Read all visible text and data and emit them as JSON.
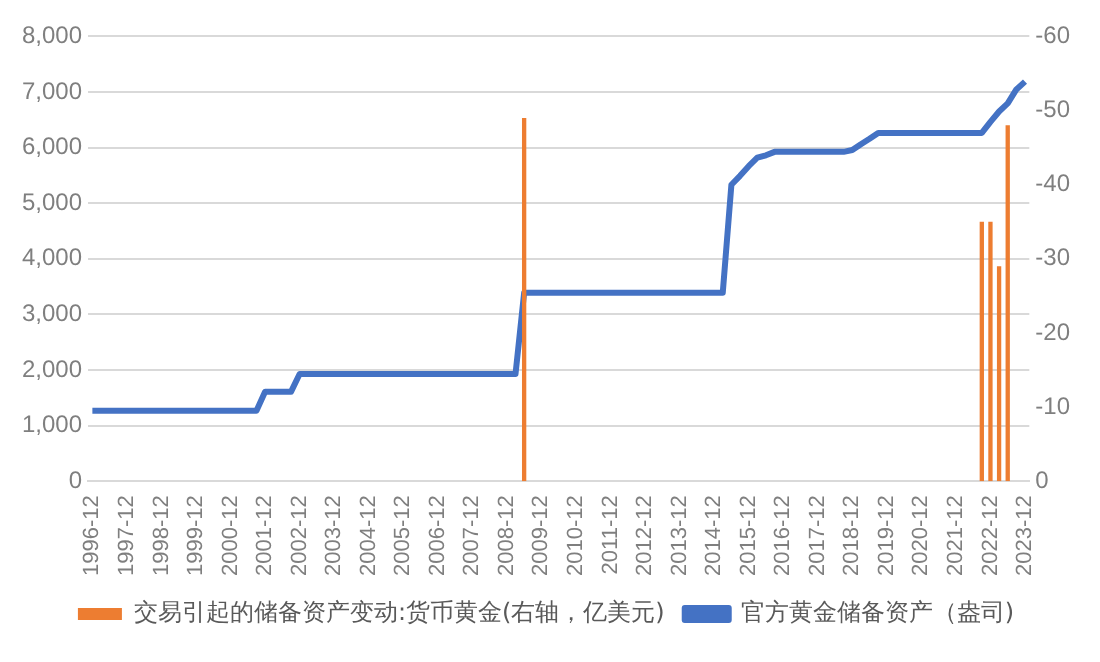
{
  "chart_data": {
    "type": "bar",
    "categories": [
      "1996-12",
      null,
      null,
      null,
      "1997-12",
      null,
      null,
      null,
      "1998-12",
      null,
      null,
      null,
      "1999-12",
      null,
      null,
      null,
      "2000-12",
      null,
      null,
      null,
      "2001-12",
      null,
      null,
      null,
      "2002-12",
      null,
      null,
      null,
      "2003-12",
      null,
      null,
      null,
      "2004-12",
      null,
      null,
      null,
      "2005-12",
      null,
      null,
      null,
      "2006-12",
      null,
      null,
      null,
      "2007-12",
      null,
      null,
      null,
      "2008-12",
      null,
      null,
      null,
      "2009-12",
      null,
      null,
      null,
      "2010-12",
      null,
      null,
      null,
      "2011-12",
      null,
      null,
      null,
      "2012-12",
      null,
      null,
      null,
      "2013-12",
      null,
      null,
      null,
      "2014-12",
      null,
      null,
      null,
      "2015-12",
      null,
      null,
      null,
      "2016-12",
      null,
      null,
      null,
      "2017-12",
      null,
      null,
      null,
      "2018-12",
      null,
      null,
      null,
      "2019-12",
      null,
      null,
      null,
      "2020-12",
      null,
      null,
      null,
      "2021-12",
      null,
      null,
      null,
      "2022-12",
      null,
      null,
      null,
      "2023-12"
    ],
    "series": [
      {
        "name": "交易引起的储备资产变动:货币黄金(右轴，亿美元)",
        "axis": "y2",
        "color": "#ed7d31",
        "values": [
          null,
          null,
          null,
          null,
          null,
          null,
          null,
          null,
          null,
          null,
          null,
          null,
          null,
          null,
          null,
          null,
          null,
          null,
          null,
          null,
          null,
          null,
          null,
          null,
          null,
          null,
          null,
          null,
          null,
          null,
          null,
          null,
          null,
          null,
          null,
          null,
          null,
          null,
          null,
          null,
          null,
          null,
          null,
          null,
          null,
          null,
          null,
          null,
          null,
          null,
          -49,
          null,
          null,
          null,
          null,
          null,
          null,
          null,
          null,
          null,
          null,
          null,
          null,
          null,
          null,
          null,
          null,
          null,
          null,
          null,
          null,
          null,
          null,
          null,
          null,
          null,
          null,
          null,
          null,
          null,
          null,
          null,
          null,
          null,
          null,
          null,
          null,
          null,
          null,
          null,
          null,
          null,
          null,
          null,
          null,
          null,
          null,
          null,
          null,
          null,
          null,
          null,
          null,
          -35,
          -35,
          -29,
          -48,
          null,
          null
        ]
      },
      {
        "name": "官方黄金储备资产（盎司)",
        "type": "line",
        "color": "#4472c4",
        "values": [
          1267,
          1267,
          1267,
          1267,
          1267,
          1267,
          1267,
          1267,
          1267,
          1267,
          1267,
          1267,
          1267,
          1267,
          1267,
          1267,
          1267,
          1267,
          1267,
          1267,
          1608,
          1608,
          1608,
          1608,
          1929,
          1929,
          1929,
          1929,
          1929,
          1929,
          1929,
          1929,
          1929,
          1929,
          1929,
          1929,
          1929,
          1929,
          1929,
          1929,
          1929,
          1929,
          1929,
          1929,
          1929,
          1929,
          1929,
          1929,
          1929,
          1929,
          3389,
          3389,
          3389,
          3389,
          3389,
          3389,
          3389,
          3389,
          3389,
          3389,
          3389,
          3389,
          3389,
          3389,
          3389,
          3389,
          3389,
          3389,
          3389,
          3389,
          3389,
          3389,
          3389,
          3389,
          5332,
          5493,
          5666,
          5819,
          5862,
          5924,
          5924,
          5924,
          5924,
          5924,
          5924,
          5924,
          5924,
          5924,
          5956,
          6062,
          6160,
          6264,
          6264,
          6264,
          6264,
          6264,
          6264,
          6264,
          6264,
          6264,
          6264,
          6264,
          6264,
          6264,
          6464,
          6650,
          6795,
          7046,
          7187
        ]
      }
    ],
    "ylim": [
      0,
      8000
    ],
    "yticks": [
      {
        "value": 0,
        "label": "0"
      },
      {
        "value": 1000,
        "label": "1,000"
      },
      {
        "value": 2000,
        "label": "2,000"
      },
      {
        "value": 3000,
        "label": "3,000"
      },
      {
        "value": 4000,
        "label": "4,000"
      },
      {
        "value": 5000,
        "label": "5,000"
      },
      {
        "value": 6000,
        "label": "6,000"
      },
      {
        "value": 7000,
        "label": "7,000"
      },
      {
        "value": 8000,
        "label": "8,000"
      }
    ],
    "y2lim": [
      0,
      -60
    ],
    "y2ticks": [
      -60,
      -50,
      -40,
      -30,
      -20,
      -10,
      0
    ],
    "grid": "y",
    "legend": "bottom"
  }
}
